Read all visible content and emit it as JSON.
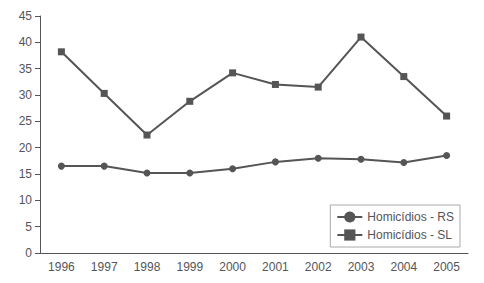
{
  "chart_data": {
    "type": "line",
    "categories": [
      "1996",
      "1997",
      "1998",
      "1999",
      "2000",
      "2001",
      "2002",
      "2003",
      "2004",
      "2005"
    ],
    "series": [
      {
        "name": "Homicídios - RS",
        "color": "#555555",
        "marker": "circle",
        "values": [
          16.5,
          16.5,
          15.2,
          15.2,
          16.0,
          17.3,
          18.0,
          17.8,
          17.2,
          18.5
        ]
      },
      {
        "name": "Homicídios - SL",
        "color": "#555555",
        "marker": "square",
        "values": [
          38.2,
          30.3,
          22.4,
          28.8,
          34.2,
          32.0,
          31.5,
          41.0,
          33.5,
          26.0
        ]
      }
    ],
    "ylim": [
      0,
      45
    ],
    "yticks": [
      0,
      5,
      10,
      15,
      20,
      25,
      30,
      35,
      40,
      45
    ],
    "grid": false,
    "legend": "lower right"
  }
}
